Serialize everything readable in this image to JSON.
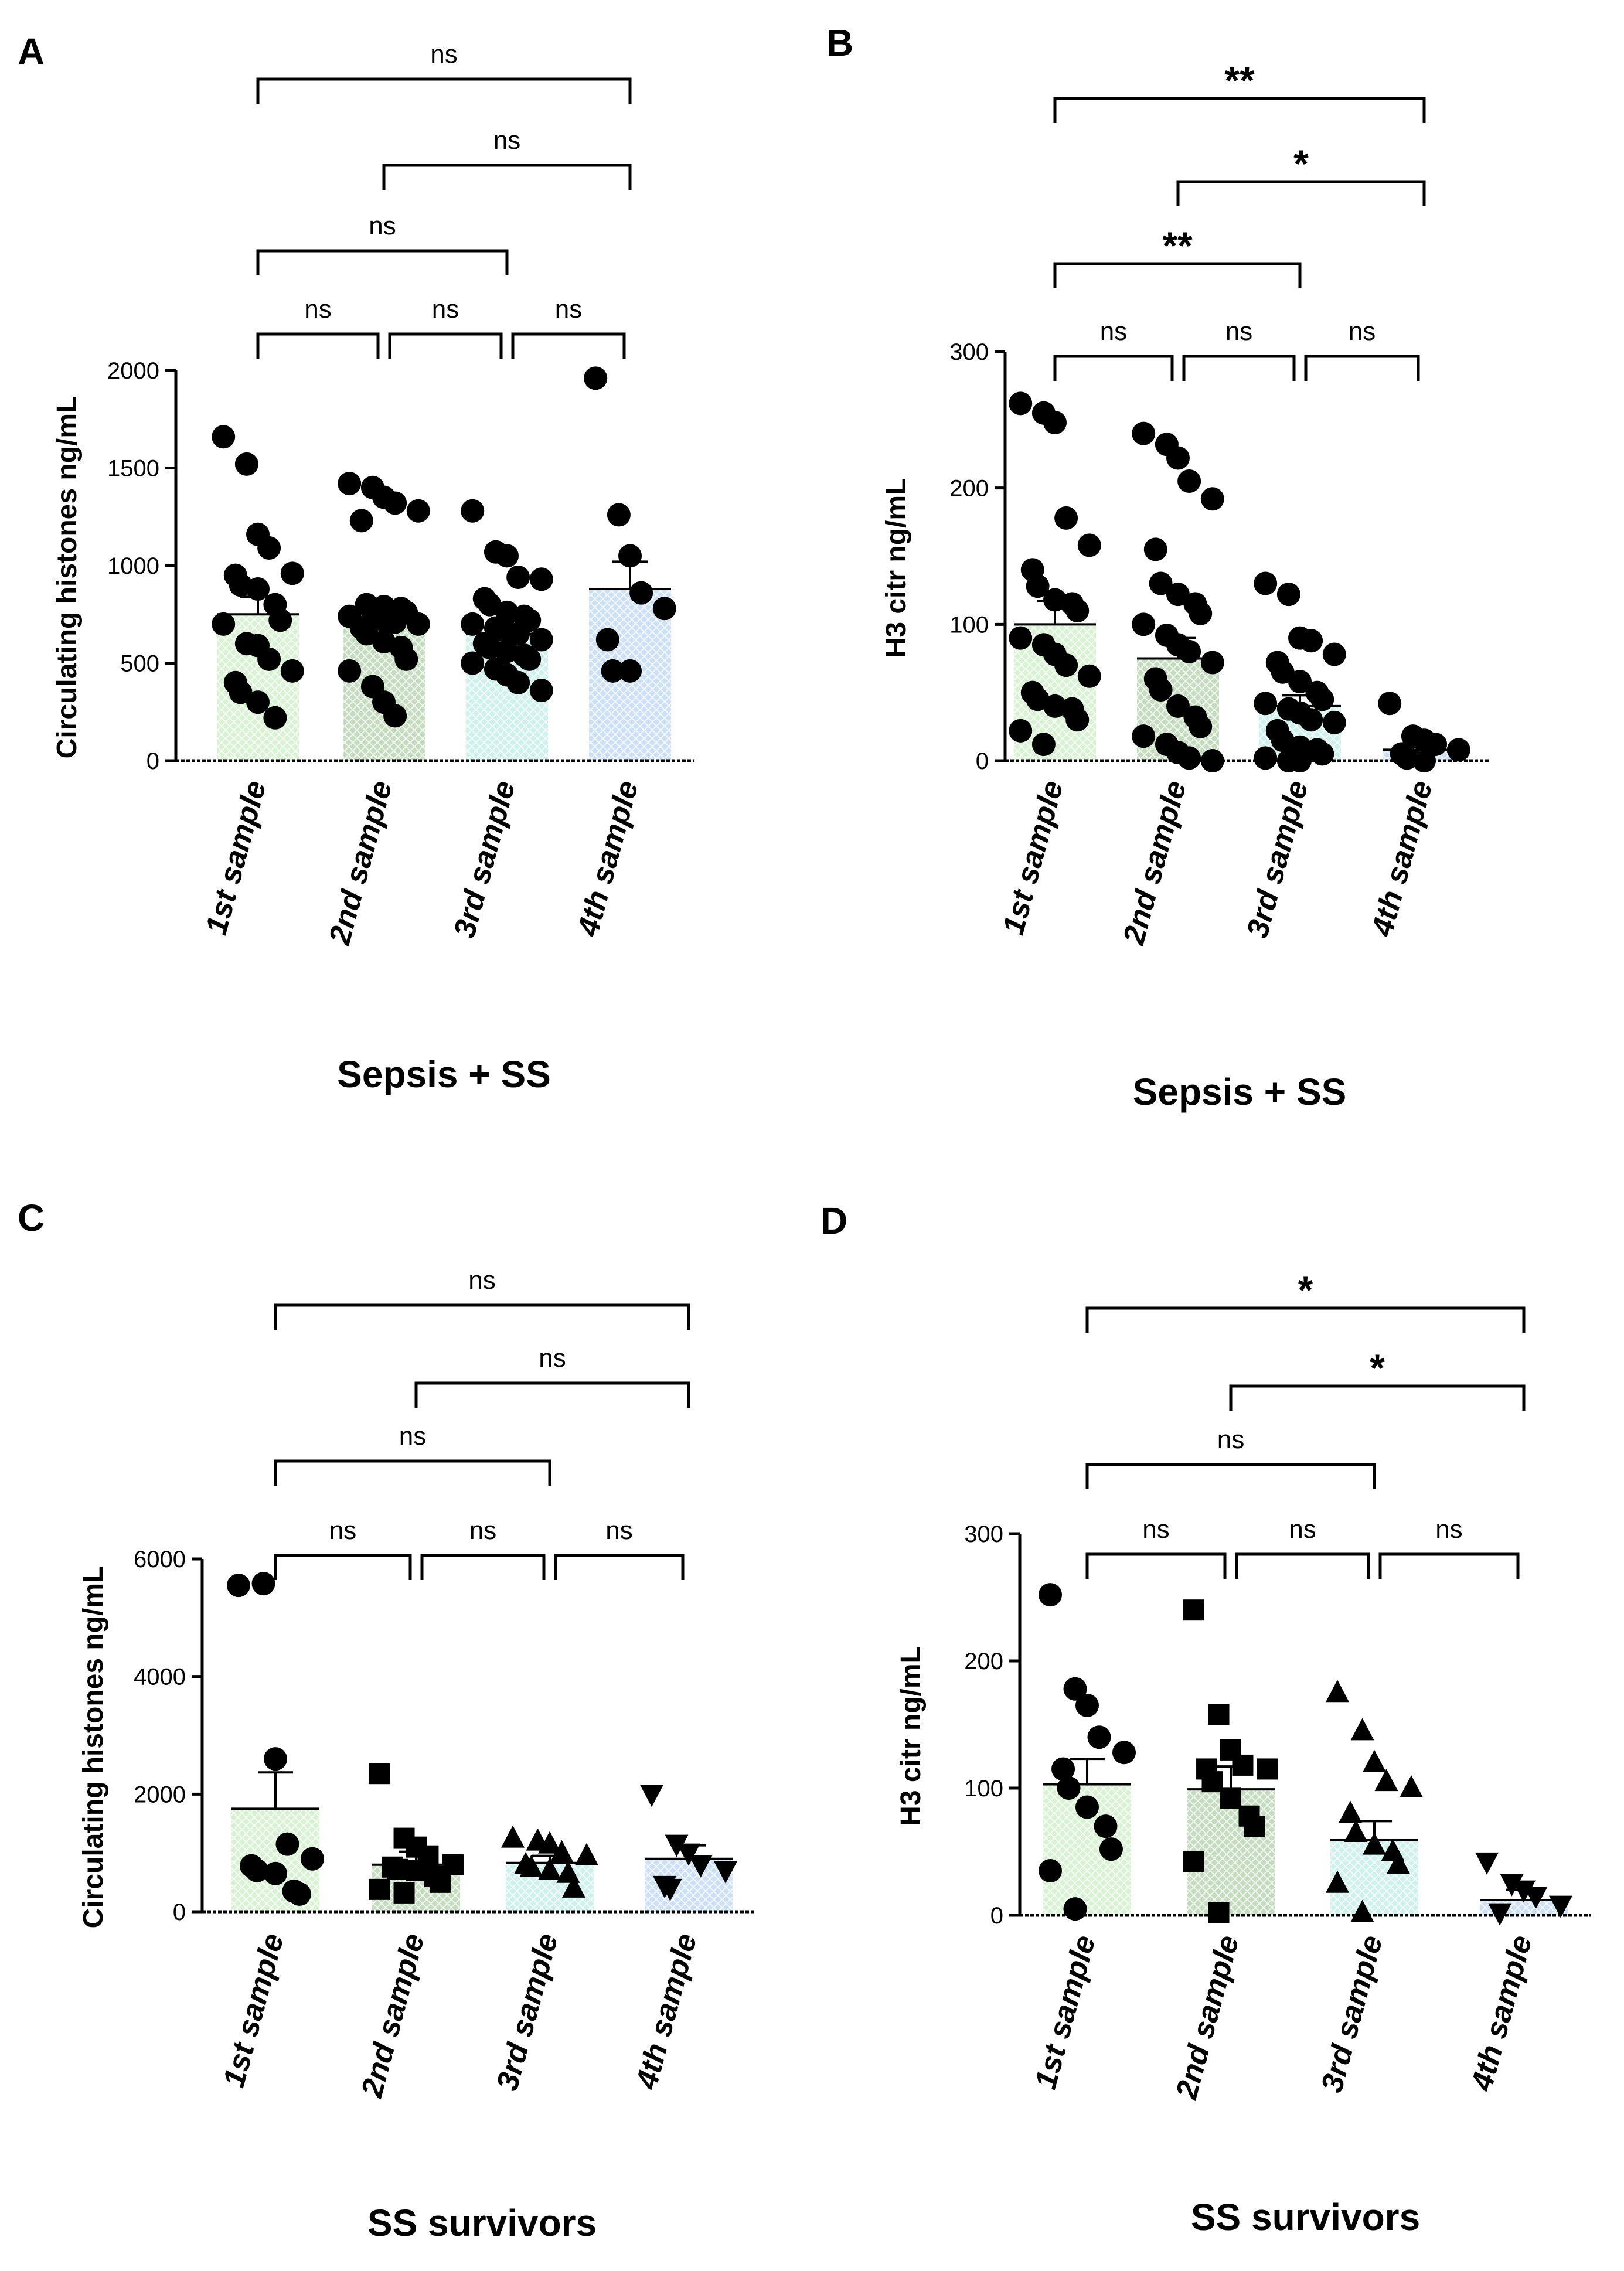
{
  "chart_data": [
    {
      "panel": "A",
      "type": "bar",
      "ylabel": "Circulating histones ng/mL",
      "xlabel": "Sepsis + SS",
      "ylim": [
        0,
        2000
      ],
      "yticks": [
        0,
        500,
        1000,
        1500,
        2000
      ],
      "categories": [
        "1st sample",
        "2nd sample",
        "3rd sample",
        "4th sample"
      ],
      "marker": "circle",
      "means": [
        750,
        730,
        650,
        880
      ],
      "sem": [
        90,
        70,
        50,
        140
      ],
      "points": [
        [
          1660,
          1520,
          1160,
          1090,
          960,
          950,
          900,
          880,
          800,
          720,
          700,
          600,
          590,
          520,
          460,
          400,
          350,
          300,
          220
        ],
        [
          1420,
          1400,
          1350,
          1320,
          1280,
          1230,
          800,
          790,
          780,
          760,
          740,
          730,
          720,
          710,
          700,
          680,
          650,
          610,
          580,
          520,
          460,
          380,
          300,
          230
        ],
        [
          1280,
          1070,
          1050,
          940,
          930,
          830,
          800,
          760,
          740,
          720,
          700,
          680,
          660,
          650,
          620,
          600,
          580,
          560,
          540,
          520,
          500,
          470,
          440,
          400,
          360
        ],
        [
          1960,
          1260,
          1050,
          860,
          780,
          620,
          460,
          460
        ]
      ],
      "significance": [
        {
          "from": 0,
          "to": 3,
          "label": "ns"
        },
        {
          "from": 1,
          "to": 3,
          "label": "ns"
        },
        {
          "from": 0,
          "to": 2,
          "label": "ns"
        },
        {
          "from": 0,
          "to": 1,
          "label": "ns"
        },
        {
          "from": 1,
          "to": 2,
          "label": "ns"
        },
        {
          "from": 2,
          "to": 3,
          "label": "ns"
        }
      ]
    },
    {
      "panel": "B",
      "type": "bar",
      "ylabel": "H3 citr ng/mL",
      "xlabel": "Sepsis + SS",
      "ylim": [
        0,
        300
      ],
      "yticks": [
        0,
        100,
        200,
        300
      ],
      "categories": [
        "1st sample",
        "2nd sample",
        "3rd sample",
        "4th sample"
      ],
      "marker": "circle",
      "means": [
        100,
        75,
        40,
        8
      ],
      "sem": [
        17,
        15,
        8,
        6
      ],
      "points": [
        [
          262,
          255,
          248,
          178,
          158,
          140,
          128,
          118,
          115,
          110,
          90,
          85,
          78,
          70,
          62,
          50,
          45,
          40,
          38,
          30,
          22,
          12
        ],
        [
          240,
          232,
          222,
          205,
          192,
          155,
          130,
          122,
          115,
          108,
          100,
          92,
          85,
          80,
          72,
          60,
          52,
          40,
          32,
          25,
          18,
          12,
          6,
          2,
          0
        ],
        [
          130,
          122,
          90,
          88,
          78,
          72,
          65,
          58,
          50,
          45,
          42,
          38,
          35,
          30,
          28,
          22,
          15,
          10,
          8,
          5,
          2,
          0,
          0
        ],
        [
          42,
          18,
          15,
          12,
          8,
          5,
          2,
          0
        ]
      ],
      "significance": [
        {
          "from": 0,
          "to": 3,
          "label": "**"
        },
        {
          "from": 1,
          "to": 3,
          "label": "*"
        },
        {
          "from": 0,
          "to": 2,
          "label": "**"
        },
        {
          "from": 0,
          "to": 1,
          "label": "ns"
        },
        {
          "from": 1,
          "to": 2,
          "label": "ns"
        },
        {
          "from": 2,
          "to": 3,
          "label": "ns"
        }
      ]
    },
    {
      "panel": "C",
      "type": "bar",
      "ylabel": "Circulating histones ng/mL",
      "xlabel": "SS survivors",
      "ylim": [
        0,
        6000
      ],
      "yticks": [
        0,
        2000,
        4000,
        6000
      ],
      "categories": [
        "1st sample",
        "2nd sample",
        "3rd sample",
        "4th sample"
      ],
      "markers": [
        "circle",
        "square",
        "triangle",
        "triangle-down"
      ],
      "means": [
        1750,
        800,
        830,
        900
      ],
      "sem": [
        620,
        220,
        120,
        230
      ],
      "points": [
        [
          5550,
          5580,
          2600,
          1150,
          900,
          780,
          700,
          650,
          350,
          300
        ],
        [
          2350,
          1250,
          1100,
          950,
          800,
          760,
          720,
          700,
          600,
          500,
          380,
          320
        ],
        [
          1250,
          1200,
          1150,
          1000,
          950,
          800,
          750,
          700,
          650,
          400
        ],
        [
          2000,
          1150,
          1000,
          800,
          700,
          450,
          400
        ]
      ],
      "significance": [
        {
          "from": 0,
          "to": 3,
          "label": "ns"
        },
        {
          "from": 1,
          "to": 3,
          "label": "ns"
        },
        {
          "from": 0,
          "to": 2,
          "label": "ns"
        },
        {
          "from": 0,
          "to": 1,
          "label": "ns"
        },
        {
          "from": 1,
          "to": 2,
          "label": "ns"
        },
        {
          "from": 2,
          "to": 3,
          "label": "ns"
        }
      ]
    },
    {
      "panel": "D",
      "type": "bar",
      "ylabel": "H3 citr ng/mL",
      "xlabel": "SS survivors",
      "ylim": [
        0,
        300
      ],
      "yticks": [
        0,
        100,
        200,
        300
      ],
      "categories": [
        "1st sample",
        "2nd sample",
        "3rd sample",
        "4th sample"
      ],
      "markers": [
        "circle",
        "square",
        "triangle",
        "triangle-down"
      ],
      "means": [
        103,
        99,
        59,
        12
      ],
      "sem": [
        20,
        18,
        15,
        8
      ],
      "points": [
        [
          252,
          178,
          165,
          140,
          128,
          115,
          100,
          85,
          70,
          52,
          35,
          5
        ],
        [
          240,
          158,
          130,
          118,
          115,
          115,
          105,
          92,
          78,
          70,
          42,
          2
        ],
        [
          175,
          145,
          120,
          105,
          100,
          80,
          65,
          55,
          50,
          40,
          25,
          2
        ],
        [
          42,
          25,
          20,
          15,
          8,
          2
        ]
      ],
      "significance": [
        {
          "from": 0,
          "to": 3,
          "label": "*"
        },
        {
          "from": 1,
          "to": 3,
          "label": "*"
        },
        {
          "from": 0,
          "to": 2,
          "label": "ns"
        },
        {
          "from": 0,
          "to": 1,
          "label": "ns"
        },
        {
          "from": 1,
          "to": 2,
          "label": "ns"
        },
        {
          "from": 2,
          "to": 3,
          "label": "ns"
        }
      ]
    }
  ],
  "bar_colors": [
    "#d9f2d4",
    "#c5dcc0",
    "#cff1ec",
    "#cde0f5"
  ]
}
